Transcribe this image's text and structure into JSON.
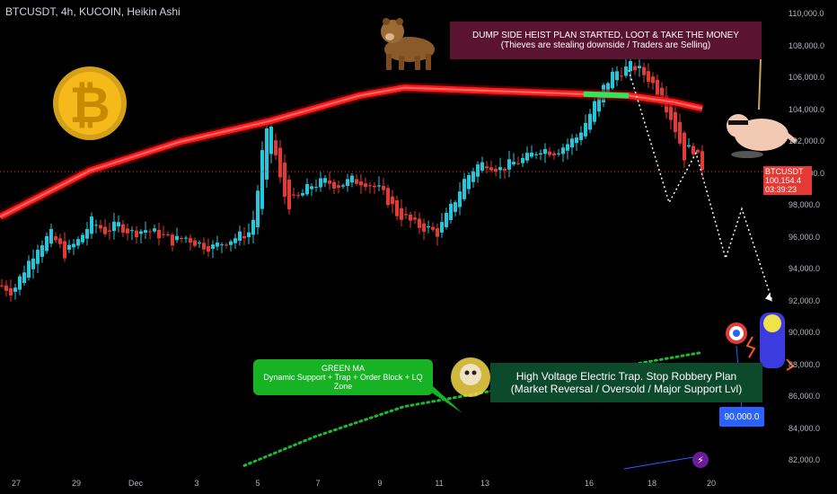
{
  "header": {
    "title": "BTCUSDT, 4h, KUCOIN, Heikin Ashi"
  },
  "price_badge": {
    "symbol": "BTCUSDT",
    "price": "100,154.4",
    "countdown": "03:39:23"
  },
  "annotations": {
    "dump_line1": "DUMP SIDE HEIST PLAN STARTED, LOOT & TAKE THE MONEY",
    "dump_line2": "(Thieves are stealing downside / Traders are Selling)",
    "electric_line1": "High Voltage Electric Trap. Stop Robbery Plan",
    "electric_line2": "(Market Reversal / Oversold / Major Support Lvl)",
    "green_title": "GREEN MA",
    "green_text": "Dynamic Support + Trap + Order Block + LQ Zone",
    "target": "90,000.0"
  },
  "colors": {
    "bull": "#26c6da",
    "bear": "#e53935",
    "ma": "#ff1a1a",
    "ma_green": "#2ee65a",
    "dots": "#1fb82f"
  },
  "icons": [
    "bitcoin-coin-icon",
    "bear-icon",
    "hanging-thief-icon",
    "target-icon",
    "electric-skeleton-icon"
  ],
  "chart_data": {
    "type": "candlestick",
    "title": "BTCUSDT, 4h, KUCOIN, Heikin Ashi",
    "y_ticks": [
      "110,000.0",
      "108,000.0",
      "106,000.0",
      "104,000.0",
      "102,000.0",
      "100,000.0",
      "98,000.0",
      "96,000.0",
      "94,000.0",
      "92,000.0",
      "90,000.0",
      "88,000.0",
      "86,000.0",
      "84,000.0",
      "82,000.0"
    ],
    "x_ticks": [
      "27",
      "29",
      "Dec",
      "3",
      "5",
      "7",
      "9",
      "11",
      "13",
      "16",
      "18",
      "20"
    ],
    "ylim": [
      81500,
      110500
    ],
    "current_price": 100154.4,
    "key_level": 90000,
    "anchors": [
      [
        0,
        93000
      ],
      [
        12,
        92600
      ],
      [
        25,
        94000
      ],
      [
        40,
        95500
      ],
      [
        55,
        96200
      ],
      [
        70,
        95000
      ],
      [
        85,
        95800
      ],
      [
        100,
        97000
      ],
      [
        115,
        96400
      ],
      [
        130,
        96800
      ],
      [
        145,
        96300
      ],
      [
        160,
        96500
      ],
      [
        175,
        96200
      ],
      [
        190,
        95800
      ],
      [
        205,
        96000
      ],
      [
        220,
        95600
      ],
      [
        235,
        95400
      ],
      [
        250,
        95800
      ],
      [
        265,
        96100
      ],
      [
        278,
        96400
      ],
      [
        285,
        99000
      ],
      [
        292,
        102200
      ],
      [
        300,
        103000
      ],
      [
        308,
        100000
      ],
      [
        318,
        98000
      ],
      [
        330,
        98500
      ],
      [
        345,
        99300
      ],
      [
        360,
        99500
      ],
      [
        375,
        99300
      ],
      [
        390,
        99600
      ],
      [
        405,
        99500
      ],
      [
        420,
        99000
      ],
      [
        432,
        98200
      ],
      [
        440,
        97500
      ],
      [
        450,
        97200
      ],
      [
        460,
        96800
      ],
      [
        472,
        96600
      ],
      [
        485,
        96300
      ],
      [
        495,
        97300
      ],
      [
        505,
        98400
      ],
      [
        515,
        99600
      ],
      [
        528,
        100500
      ],
      [
        540,
        100700
      ],
      [
        555,
        100300
      ],
      [
        570,
        100700
      ],
      [
        585,
        101000
      ],
      [
        600,
        101600
      ],
      [
        615,
        101400
      ],
      [
        628,
        101800
      ],
      [
        640,
        102300
      ],
      [
        652,
        103400
      ],
      [
        662,
        104600
      ],
      [
        672,
        105600
      ],
      [
        682,
        106400
      ],
      [
        692,
        106500
      ],
      [
        702,
        106800
      ],
      [
        712,
        106400
      ],
      [
        722,
        105900
      ],
      [
        732,
        105000
      ],
      [
        742,
        104000
      ],
      [
        752,
        102500
      ],
      [
        760,
        101100
      ],
      [
        768,
        101800
      ],
      [
        775,
        101000
      ],
      [
        782,
        100200
      ]
    ],
    "series": [
      {
        "id": "red-ma",
        "points": [
          [
            0,
            97300
          ],
          [
            100,
            100200
          ],
          [
            200,
            102000
          ],
          [
            300,
            103300
          ],
          [
            400,
            104900
          ],
          [
            450,
            105400
          ],
          [
            500,
            105300
          ],
          [
            550,
            105200
          ],
          [
            600,
            105100
          ],
          [
            650,
            105000
          ],
          [
            700,
            104900
          ],
          [
            750,
            104500
          ],
          [
            782,
            104100
          ]
        ]
      },
      {
        "id": "green-ma",
        "points": [
          [
            272,
            81700
          ],
          [
            350,
            83500
          ],
          [
            450,
            85400
          ],
          [
            550,
            86400
          ],
          [
            650,
            87600
          ],
          [
            700,
            88000
          ],
          [
            782,
            88800
          ]
        ]
      },
      {
        "id": "projection",
        "points": [
          [
            700,
            106500
          ],
          [
            745,
            98200
          ],
          [
            775,
            101300
          ],
          [
            808,
            94700
          ],
          [
            826,
            97800
          ],
          [
            860,
            92000
          ]
        ]
      }
    ]
  }
}
